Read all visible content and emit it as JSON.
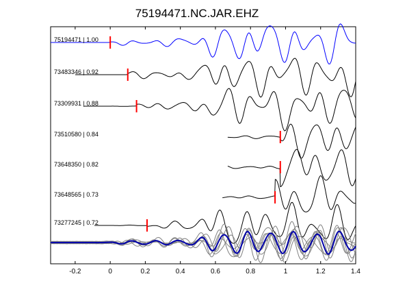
{
  "title": "75194471.NC.JAR.EHZ",
  "colors": {
    "reference_trace": "#0000ff",
    "other_traces": "#000000",
    "pick_marker": "#ff0000",
    "stack_background": "#808080",
    "stack_mean": "#0000aa"
  },
  "chart_data": {
    "type": "line",
    "title": "75194471.NC.JAR.EHZ",
    "xlabel": "",
    "ylabel": "",
    "xlim": [
      -0.34,
      1.4
    ],
    "x_ticks": [
      "-0.2",
      "0",
      "0.2",
      "0.4",
      "0.6",
      "0.8",
      "1",
      "1.2",
      "1.4"
    ],
    "grid": false,
    "traces": [
      {
        "label": "75194471 | 1.00",
        "pick": 0.0
      },
      {
        "label": "73483346 | 0.92",
        "pick": 0.1
      },
      {
        "label": "73309931 | 0.88",
        "pick": 0.15
      },
      {
        "label": "73510580 | 0.84",
        "pick": 0.97
      },
      {
        "label": "73648350 | 0.82",
        "pick": 0.97
      },
      {
        "label": "73648565 | 0.73",
        "pick": 0.94
      },
      {
        "label": "73277245 | 0.72",
        "pick": 0.21
      }
    ],
    "stack": {
      "label": "",
      "overlaid_traces": 7
    }
  }
}
